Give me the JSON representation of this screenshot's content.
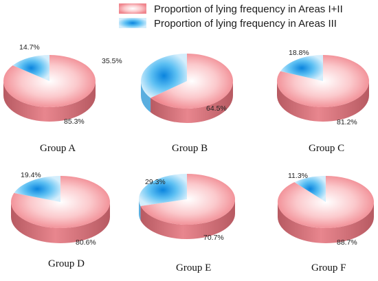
{
  "chart_data": {
    "type": "pie",
    "style": "3d",
    "legend": {
      "placement": "top-right",
      "entries": [
        {
          "key": "a12",
          "label": "Proportion of lying frequency in Areas I+II",
          "color": "#f08a92"
        },
        {
          "key": "a3",
          "label": "Proportion of lying frequency in Areas III",
          "color": "#29a8ef"
        }
      ]
    },
    "groups": [
      {
        "name": "Group A",
        "a12": 85.3,
        "a3": 14.7,
        "a12_label": "85.3%",
        "a3_label": "14.7%"
      },
      {
        "name": "Group B",
        "a12": 64.5,
        "a3": 35.5,
        "a12_label": "64.5%",
        "a3_label": "35.5%"
      },
      {
        "name": "Group C",
        "a12": 81.2,
        "a3": 18.8,
        "a12_label": "81.2%",
        "a3_label": "18.8%"
      },
      {
        "name": "Group D",
        "a12": 80.6,
        "a3": 19.4,
        "a12_label": "80.6%",
        "a3_label": "19.4%"
      },
      {
        "name": "Group E",
        "a12": 70.7,
        "a3": 29.3,
        "a12_label": "70.7%",
        "a3_label": "29.3%"
      },
      {
        "name": "Group F",
        "a12": 88.7,
        "a3": 11.3,
        "a12_label": "88.7%",
        "a3_label": "11.3%"
      }
    ],
    "colors": {
      "a12_top_center": "#ffffff",
      "a12_top_mid": "#fbc9cc",
      "a12_top_edge": "#f0868e",
      "a12_side_light": "#e8868e",
      "a12_side_dark": "#b75a62",
      "a3_top_center": "#0a84de",
      "a3_top_mid": "#5dc0f3",
      "a3_top_edge": "#d4eefc",
      "a3_side": "#5aaedf"
    }
  }
}
